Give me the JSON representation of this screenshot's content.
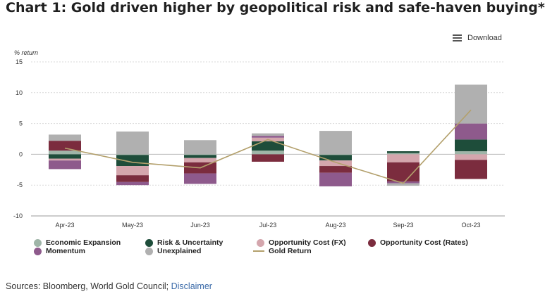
{
  "header": {
    "title": "Chart 1: Gold driven higher by geopolitical risk and safe-haven buying*",
    "download_label": "Download",
    "menu_icon": "hamburger-menu-icon"
  },
  "footer": {
    "sources_text": "Sources: Bloomberg, World Gold Council;",
    "disclaimer_label": "Disclaimer"
  },
  "chart_data": {
    "type": "bar",
    "stacked": true,
    "title": "",
    "ylabel": "% return",
    "ylim": [
      -10,
      15
    ],
    "yticks": [
      15,
      10,
      5,
      0,
      -5,
      -10
    ],
    "grid": true,
    "legend_position": "bottom",
    "categories": [
      "Apr-23",
      "May-23",
      "Jun-23",
      "Jul-23",
      "Aug-23",
      "Sep-23",
      "Oct-23"
    ],
    "series": [
      {
        "name": "Economic Expansion",
        "color": "#9fb5a8",
        "values": [
          0.6,
          -0.1,
          -0.1,
          0.6,
          -0.1,
          0.2,
          0.5
        ]
      },
      {
        "name": "Risk & Uncertainty",
        "color": "#1e4d3a",
        "values": [
          -0.7,
          -1.8,
          -0.5,
          1.5,
          -0.9,
          0.3,
          1.9
        ]
      },
      {
        "name": "Opportunity Cost (FX)",
        "color": "#d4a6ad",
        "values": [
          -0.3,
          -1.5,
          -0.7,
          0.6,
          -0.9,
          -1.3,
          -0.9
        ]
      },
      {
        "name": "Opportunity Cost (Rates)",
        "color": "#7b2c3e",
        "values": [
          1.6,
          -1.1,
          -1.8,
          -1.2,
          -1.1,
          -3.1,
          -3.1
        ]
      },
      {
        "name": "Momentum",
        "color": "#8e5a8c",
        "values": [
          -1.4,
          -0.5,
          -1.7,
          0.3,
          -2.2,
          -0.3,
          2.6
        ]
      },
      {
        "name": "Unexplained",
        "color": "#b0b0b0",
        "values": [
          1.0,
          3.7,
          2.3,
          0.4,
          3.8,
          -0.4,
          6.3
        ]
      }
    ],
    "line_series": {
      "name": "Gold Return",
      "color": "#b3a06c",
      "values": [
        1.0,
        -1.3,
        -2.2,
        2.4,
        -1.3,
        -4.7,
        7.2
      ]
    }
  }
}
